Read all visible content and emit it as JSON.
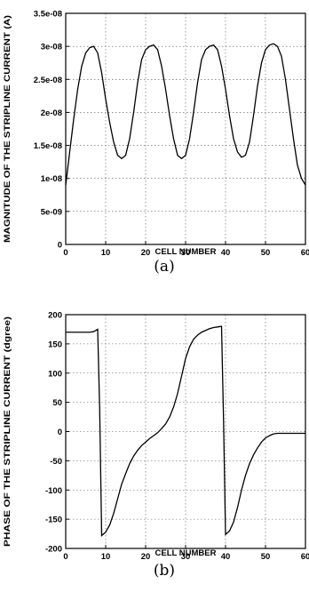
{
  "chart_data": [
    {
      "type": "line",
      "caption": "(a)",
      "xlabel": "CELL NUMBER",
      "ylabel": "MAGNITUDE OF THE STRIPLINE CURRENT (A)",
      "xlim": [
        0,
        60
      ],
      "ylim": [
        0,
        3.5e-08
      ],
      "xticks": [
        "0",
        "10",
        "20",
        "30",
        "40",
        "50",
        "60"
      ],
      "yticks": [
        "0",
        "5e-09",
        "1e-08",
        "1.5e-08",
        "2e-08",
        "2.5e-08",
        "3e-08",
        "3.5e-08"
      ],
      "grid": true,
      "x": [
        0,
        1,
        2,
        3,
        4,
        5,
        6,
        7,
        8,
        9,
        10,
        11,
        12,
        13,
        14,
        15,
        16,
        17,
        18,
        19,
        20,
        21,
        22,
        23,
        24,
        25,
        26,
        27,
        28,
        29,
        30,
        31,
        32,
        33,
        34,
        35,
        36,
        37,
        38,
        39,
        40,
        41,
        42,
        43,
        44,
        45,
        46,
        47,
        48,
        49,
        50,
        51,
        52,
        53,
        54,
        55,
        56,
        57,
        58,
        59,
        60
      ],
      "y": [
        9e-09,
        1.4e-08,
        1.9e-08,
        2.35e-08,
        2.7e-08,
        2.9e-08,
        2.98e-08,
        3e-08,
        2.9e-08,
        2.6e-08,
        2.2e-08,
        1.85e-08,
        1.55e-08,
        1.35e-08,
        1.3e-08,
        1.35e-08,
        1.6e-08,
        2e-08,
        2.45e-08,
        2.8e-08,
        2.95e-08,
        3e-08,
        3.02e-08,
        2.95e-08,
        2.7e-08,
        2.35e-08,
        1.95e-08,
        1.6e-08,
        1.35e-08,
        1.3e-08,
        1.35e-08,
        1.6e-08,
        2e-08,
        2.45e-08,
        2.8e-08,
        2.95e-08,
        3e-08,
        3.02e-08,
        2.95e-08,
        2.7e-08,
        2.35e-08,
        1.95e-08,
        1.6e-08,
        1.4e-08,
        1.32e-08,
        1.35e-08,
        1.55e-08,
        1.95e-08,
        2.4e-08,
        2.75e-08,
        2.95e-08,
        3.02e-08,
        3.04e-08,
        3e-08,
        2.85e-08,
        2.5e-08,
        2.05e-08,
        1.6e-08,
        1.2e-08,
        1e-08,
        9e-09
      ]
    },
    {
      "type": "line",
      "caption": "(b)",
      "xlabel": "CELL NUMBER",
      "ylabel": "PHASE OF THE STRIPLINE CURRENT (dgree)",
      "xlim": [
        0,
        60
      ],
      "ylim": [
        -200,
        200
      ],
      "xticks": [
        "0",
        "10",
        "20",
        "30",
        "40",
        "50",
        "60"
      ],
      "yticks": [
        "-200",
        "-150",
        "-100",
        "-50",
        "0",
        "50",
        "100",
        "150",
        "200"
      ],
      "grid": true,
      "x": [
        0,
        1,
        2,
        3,
        4,
        5,
        6,
        7,
        8,
        8.5,
        9,
        10,
        11,
        12,
        13,
        14,
        15,
        16,
        17,
        18,
        19,
        20,
        21,
        22,
        23,
        24,
        25,
        26,
        27,
        28,
        29,
        30,
        31,
        32,
        33,
        34,
        35,
        36,
        37,
        38,
        39,
        39.5,
        40,
        41,
        42,
        43,
        44,
        45,
        46,
        47,
        48,
        49,
        50,
        51,
        52,
        53,
        54,
        55,
        56,
        57,
        58,
        59,
        60
      ],
      "y": [
        170,
        170,
        170,
        170,
        170,
        170,
        170,
        171,
        175,
        40,
        -178,
        -172,
        -160,
        -140,
        -115,
        -90,
        -72,
        -55,
        -42,
        -32,
        -24,
        -18,
        -12,
        -7,
        -2,
        5,
        13,
        25,
        42,
        65,
        95,
        125,
        145,
        158,
        165,
        170,
        173,
        176,
        178,
        179,
        180,
        20,
        -176,
        -170,
        -155,
        -130,
        -100,
        -75,
        -55,
        -40,
        -28,
        -18,
        -11,
        -7,
        -4,
        -3,
        -3,
        -3,
        -3,
        -3,
        -3,
        -3,
        -3
      ]
    }
  ]
}
